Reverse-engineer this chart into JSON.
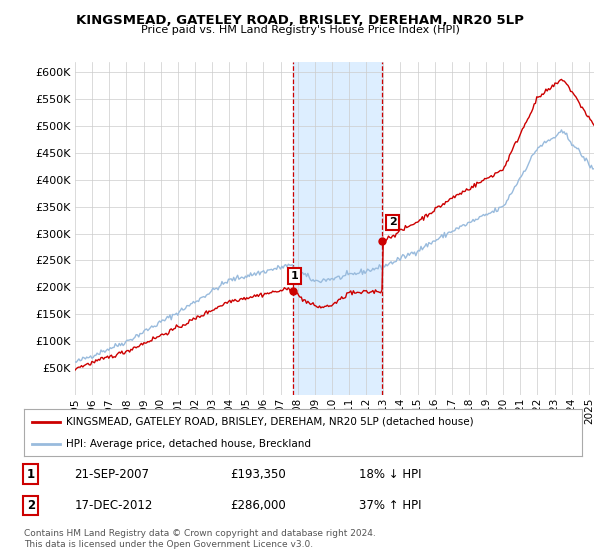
{
  "title": "KINGSMEAD, GATELEY ROAD, BRISLEY, DEREHAM, NR20 5LP",
  "subtitle": "Price paid vs. HM Land Registry's House Price Index (HPI)",
  "legend_label_red": "KINGSMEAD, GATELEY ROAD, BRISLEY, DEREHAM, NR20 5LP (detached house)",
  "legend_label_blue": "HPI: Average price, detached house, Breckland",
  "transaction1_date": "21-SEP-2007",
  "transaction1_price": "£193,350",
  "transaction1_hpi": "18% ↓ HPI",
  "transaction2_date": "17-DEC-2012",
  "transaction2_price": "£286,000",
  "transaction2_hpi": "37% ↑ HPI",
  "footer": "Contains HM Land Registry data © Crown copyright and database right 2024.\nThis data is licensed under the Open Government Licence v3.0.",
  "ylim": [
    0,
    620000
  ],
  "yticks": [
    0,
    50000,
    100000,
    150000,
    200000,
    250000,
    300000,
    350000,
    400000,
    450000,
    500000,
    550000,
    600000
  ],
  "background_color": "#ffffff",
  "plot_bg_color": "#ffffff",
  "grid_color": "#cccccc",
  "red_color": "#cc0000",
  "blue_color": "#99bbdd",
  "highlight_bg": "#ddeeff",
  "marker1_x": 2007.72,
  "marker1_y": 193350,
  "marker2_x": 2012.95,
  "marker2_y": 286000,
  "highlight_x1": 2007.72,
  "highlight_x2": 2012.95,
  "xmin": 1995,
  "xmax": 2025.3
}
